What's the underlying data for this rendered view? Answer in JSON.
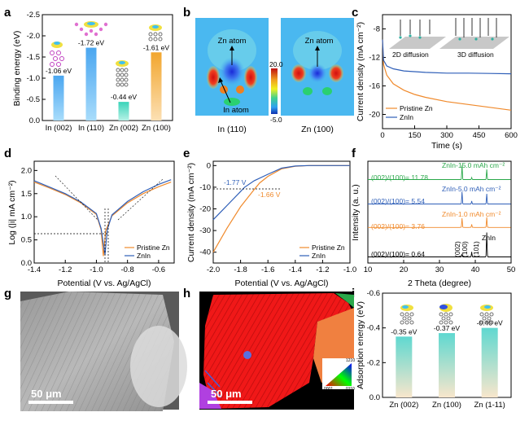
{
  "colors": {
    "blue": "#2f5fb8",
    "orange": "#f08a2c",
    "green": "#2aa84a",
    "cyan_bar": "#5fb6ee",
    "teal_bar": "#62d8c8",
    "orange_bar": "#f3a93a"
  },
  "panels": {
    "a": "a",
    "b": "b",
    "c": "c",
    "d": "d",
    "e": "e",
    "f": "f",
    "g": "g",
    "h": "h",
    "i": "i"
  },
  "chart_data": [
    {
      "id": "a",
      "type": "bar",
      "ylabel": "Binding energy (eV)",
      "categories": [
        "In (002)",
        "In (110)",
        "Zn (002)",
        "Zn (100)"
      ],
      "values": [
        -1.06,
        -1.72,
        -0.44,
        -1.61
      ],
      "labels": [
        "-1.06 eV",
        "-1.72 eV",
        "-0.44 eV",
        "-1.61 eV"
      ],
      "ylim": [
        0,
        -2.5
      ],
      "yticks": [
        "0.0",
        "-0.5",
        "-1.0",
        "-1.5",
        "-2.0",
        "-2.5"
      ]
    },
    {
      "id": "b",
      "type": "heatmap",
      "titles": [
        "In (110)",
        "Zn (100)"
      ],
      "annotations": [
        "Zn atom",
        "In atom",
        "Zn atom"
      ],
      "colorbar": [
        "20.0",
        "-5.0"
      ]
    },
    {
      "id": "c",
      "type": "line",
      "xlabel": "Time (s)",
      "ylabel": "Current density (mA cm⁻²)",
      "xlim": [
        0,
        600
      ],
      "ylim": [
        -22,
        -6
      ],
      "xticks": [
        "0",
        "150",
        "300",
        "450",
        "600"
      ],
      "yticks": [
        "-20",
        "-16",
        "-12",
        "-8"
      ],
      "series": [
        {
          "name": "Pristine Zn",
          "x": [
            0,
            5,
            20,
            50,
            100,
            150,
            200,
            300,
            400,
            500,
            600
          ],
          "y": [
            -9.5,
            -13.0,
            -14.5,
            -15.7,
            -16.6,
            -17.2,
            -17.6,
            -18.2,
            -18.6,
            -19.0,
            -19.4
          ]
        },
        {
          "name": "ZnIn",
          "x": [
            0,
            5,
            20,
            50,
            100,
            150,
            200,
            300,
            400,
            500,
            600
          ],
          "y": [
            -9.5,
            -12.4,
            -13.2,
            -13.6,
            -13.9,
            -14.0,
            -14.1,
            -14.2,
            -14.2,
            -14.25,
            -14.3
          ]
        }
      ],
      "inset_labels": [
        "2D diffusion",
        "3D diffusion"
      ]
    },
    {
      "id": "d",
      "type": "line",
      "xlabel": "Potential (V vs. Ag/AgCl)",
      "ylabel": "Log (|i| mA cm⁻²)",
      "xlim": [
        -1.4,
        -0.5
      ],
      "ylim": [
        0.0,
        2.2
      ],
      "xticks": [
        "-1.4",
        "-1.2",
        "-1.0",
        "-0.8",
        "-0.6"
      ],
      "yticks": [
        "0.0",
        "0.5",
        "1.0",
        "1.5",
        "2.0"
      ],
      "series": [
        {
          "name": "Pristine Zn",
          "x": [
            -1.4,
            -1.3,
            -1.2,
            -1.1,
            -1.0,
            -0.97,
            -0.955,
            -0.94,
            -0.9,
            -0.8,
            -0.7,
            -0.6,
            -0.52
          ],
          "y": [
            1.75,
            1.62,
            1.48,
            1.3,
            1.05,
            0.72,
            0.15,
            0.7,
            1.02,
            1.3,
            1.5,
            1.65,
            1.75
          ]
        },
        {
          "name": "ZnIn",
          "x": [
            -1.4,
            -1.3,
            -1.2,
            -1.1,
            -1.0,
            -0.97,
            -0.945,
            -0.93,
            -0.9,
            -0.8,
            -0.7,
            -0.6,
            -0.52
          ],
          "y": [
            1.78,
            1.64,
            1.5,
            1.32,
            1.07,
            0.75,
            0.18,
            0.72,
            1.04,
            1.33,
            1.54,
            1.7,
            1.8
          ]
        }
      ]
    },
    {
      "id": "e",
      "type": "line",
      "xlabel": "Potential (V vs. Ag/AgCl)",
      "ylabel": "Current density (mA cm⁻²)",
      "xlim": [
        -2.0,
        -1.0
      ],
      "ylim": [
        -45,
        2
      ],
      "xticks": [
        "-2.0",
        "-1.8",
        "-1.6",
        "-1.4",
        "-1.2",
        "-1.0"
      ],
      "yticks": [
        "0",
        "-10",
        "-20",
        "-30",
        "-40"
      ],
      "annotations": [
        "-1.77 V",
        "-1.66 V"
      ],
      "series": [
        {
          "name": "Pristine Zn",
          "x": [
            -2.0,
            -1.9,
            -1.8,
            -1.7,
            -1.66,
            -1.6,
            -1.5,
            -1.4,
            -1.3,
            -1.0
          ],
          "y": [
            -40,
            -29,
            -19,
            -11,
            -8,
            -5,
            -1.5,
            -0.3,
            0,
            0
          ]
        },
        {
          "name": "ZnIn",
          "x": [
            -2.0,
            -1.9,
            -1.8,
            -1.77,
            -1.7,
            -1.6,
            -1.5,
            -1.4,
            -1.3,
            -1.0
          ],
          "y": [
            -25,
            -18.5,
            -12,
            -10,
            -7,
            -4,
            -1.2,
            -0.2,
            0,
            0
          ]
        }
      ]
    },
    {
      "id": "f",
      "type": "line",
      "xlabel": "2 Theta (degree)",
      "ylabel": "Intensity (a. u.)",
      "xlim": [
        10,
        50
      ],
      "xticks": [
        "10",
        "20",
        "30",
        "40",
        "50"
      ],
      "series": [
        {
          "name": "ZnIn-15.0 mAh cm⁻²",
          "ratio": "(002)/(100)= 11.78"
        },
        {
          "name": "ZnIn-5.0 mAh cm⁻²",
          "ratio": "(002)/(100)= 5.54"
        },
        {
          "name": "ZnIn-1.0 mAh cm⁻²",
          "ratio": "(002)/(100)= 3.76"
        },
        {
          "name": "ZnIn",
          "ratio": "(002)/(100)= 0.64"
        }
      ],
      "peak_labels": [
        "(002)",
        "(100)",
        "(101)"
      ]
    },
    {
      "id": "i",
      "type": "bar",
      "ylabel": "Adsorption energy (eV)",
      "categories": [
        "Zn (002)",
        "Zn (100)",
        "Zn (1-11)"
      ],
      "values": [
        -0.35,
        -0.37,
        -0.4
      ],
      "labels": [
        "-0.35 eV",
        "-0.37 eV",
        "-0.40 eV"
      ],
      "ylim": [
        0,
        -0.6
      ],
      "yticks": [
        "0.0",
        "-0.2",
        "-0.4",
        "-0.6"
      ]
    }
  ],
  "images": {
    "g_scale": "50 μm",
    "h_scale": "50 μm",
    "h_legend": [
      "1210",
      "0001",
      "0110"
    ]
  }
}
